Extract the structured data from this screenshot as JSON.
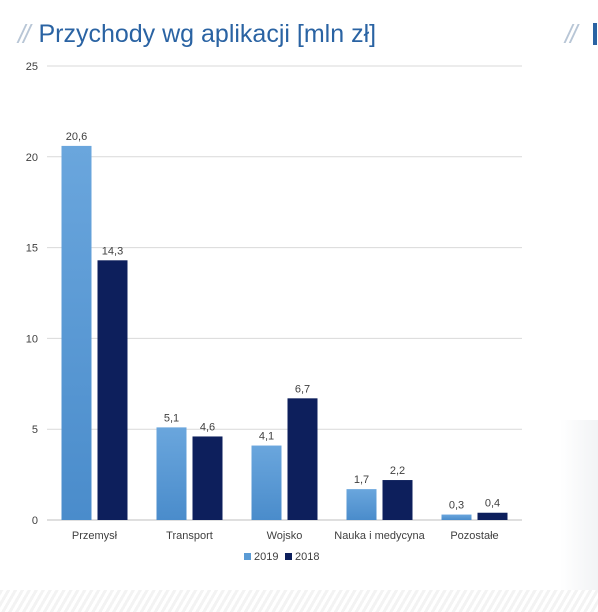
{
  "header": {
    "slashes": "//",
    "title": "Przychody wg aplikacji [mln zł]",
    "right_slashes": "//"
  },
  "colors": {
    "title": "#2a63a3",
    "series_2019": "#5b9bd5",
    "series_2018": "#0d1f5c",
    "grid": "#d9d9d9"
  },
  "chart_data": {
    "type": "bar",
    "title": "",
    "xlabel": "",
    "ylabel": "",
    "categories": [
      "Przemysł",
      "Transport",
      "Wojsko",
      "Nauka i medycyna",
      "Pozostałe"
    ],
    "series": [
      {
        "name": "2019",
        "values": [
          20.6,
          5.1,
          4.1,
          1.7,
          0.3
        ],
        "labels": [
          "20,6",
          "5,1",
          "4,1",
          "1,7",
          "0,3"
        ]
      },
      {
        "name": "2018",
        "values": [
          14.3,
          4.6,
          6.7,
          2.2,
          0.4
        ],
        "labels": [
          "14,3",
          "4,6",
          "6,7",
          "2,2",
          "0,4"
        ]
      }
    ],
    "ylim": [
      0,
      25
    ],
    "yticks": [
      0,
      5,
      10,
      15,
      20,
      25
    ],
    "ytick_labels": [
      "0",
      "5",
      "10",
      "15",
      "20",
      "25"
    ],
    "grid": true,
    "legend": "bottom-center"
  }
}
